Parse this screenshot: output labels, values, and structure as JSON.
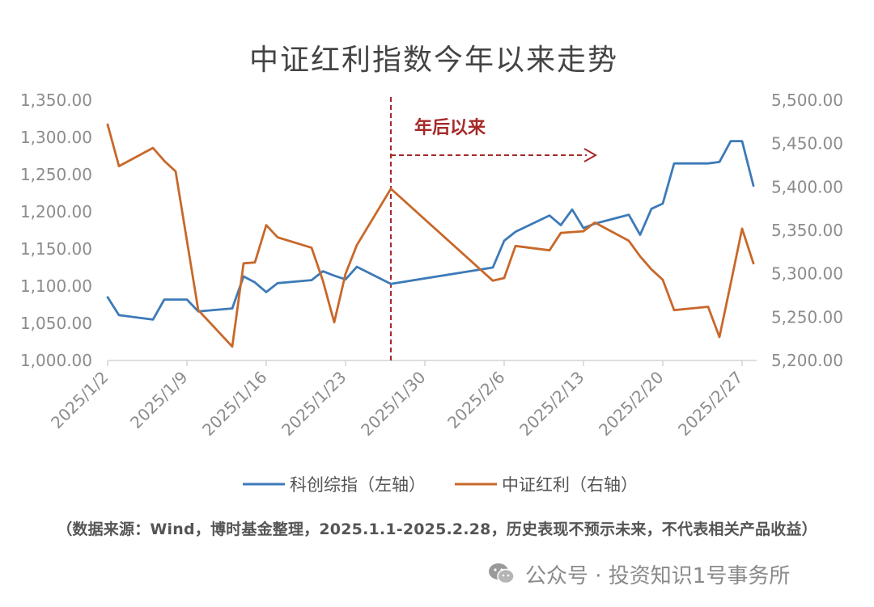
{
  "chart_data": {
    "type": "line",
    "title": "中证红利指数今年以来走势",
    "x_tick_labels": [
      "2025/1/2",
      "2025/1/9",
      "2025/1/16",
      "2025/1/23",
      "2025/1/30",
      "2025/2/6",
      "2025/2/13",
      "2025/2/20",
      "2025/2/27"
    ],
    "left_axis": {
      "ylim": [
        1000,
        1350
      ],
      "ticks": [
        "1,000.00",
        "1,050.00",
        "1,100.00",
        "1,150.00",
        "1,200.00",
        "1,250.00",
        "1,300.00",
        "1,350.00"
      ]
    },
    "right_axis": {
      "ylim": [
        5200,
        5500
      ],
      "ticks": [
        "5,200.00",
        "5,250.00",
        "5,300.00",
        "5,350.00",
        "5,400.00",
        "5,450.00",
        "5,500.00"
      ]
    },
    "grid": false,
    "legend_position": "bottom",
    "annotation": {
      "label": "年后以来",
      "date": "2025-01-27"
    },
    "series": [
      {
        "name": "科创综指（左轴）",
        "axis": "left",
        "color": "#3d7ab8",
        "points": [
          [
            "2025-01-02",
            1085
          ],
          [
            "2025-01-03",
            1061
          ],
          [
            "2025-01-06",
            1055
          ],
          [
            "2025-01-07",
            1082
          ],
          [
            "2025-01-08",
            1082
          ],
          [
            "2025-01-09",
            1082
          ],
          [
            "2025-01-10",
            1066
          ],
          [
            "2025-01-13",
            1070
          ],
          [
            "2025-01-14",
            1113
          ],
          [
            "2025-01-15",
            1105
          ],
          [
            "2025-01-16",
            1092
          ],
          [
            "2025-01-17",
            1104
          ],
          [
            "2025-01-20",
            1108
          ],
          [
            "2025-01-21",
            1120
          ],
          [
            "2025-01-22",
            1114
          ],
          [
            "2025-01-23",
            1109
          ],
          [
            "2025-01-24",
            1126
          ],
          [
            "2025-01-27",
            1103
          ],
          [
            "2025-02-05",
            1125
          ],
          [
            "2025-02-06",
            1161
          ],
          [
            "2025-02-07",
            1173
          ],
          [
            "2025-02-10",
            1195
          ],
          [
            "2025-02-11",
            1182
          ],
          [
            "2025-02-12",
            1203
          ],
          [
            "2025-02-13",
            1178
          ],
          [
            "2025-02-14",
            1184
          ],
          [
            "2025-02-17",
            1196
          ],
          [
            "2025-02-18",
            1169
          ],
          [
            "2025-02-19",
            1204
          ],
          [
            "2025-02-20",
            1211
          ],
          [
            "2025-02-21",
            1265
          ],
          [
            "2025-02-24",
            1265
          ],
          [
            "2025-02-25",
            1267
          ],
          [
            "2025-02-26",
            1295
          ],
          [
            "2025-02-27",
            1295
          ],
          [
            "2025-02-28",
            1235
          ]
        ]
      },
      {
        "name": "中证红利（右轴）",
        "axis": "right",
        "color": "#c8682a",
        "points": [
          [
            "2025-01-02",
            5472
          ],
          [
            "2025-01-03",
            5424
          ],
          [
            "2025-01-06",
            5445
          ],
          [
            "2025-01-07",
            5430
          ],
          [
            "2025-01-08",
            5418
          ],
          [
            "2025-01-10",
            5258
          ],
          [
            "2025-01-13",
            5216
          ],
          [
            "2025-01-14",
            5312
          ],
          [
            "2025-01-15",
            5313
          ],
          [
            "2025-01-16",
            5356
          ],
          [
            "2025-01-17",
            5342
          ],
          [
            "2025-01-20",
            5330
          ],
          [
            "2025-01-21",
            5292
          ],
          [
            "2025-01-22",
            5244
          ],
          [
            "2025-01-23",
            5300
          ],
          [
            "2025-01-24",
            5333
          ],
          [
            "2025-01-27",
            5398
          ],
          [
            "2025-02-05",
            5292
          ],
          [
            "2025-02-06",
            5295
          ],
          [
            "2025-02-07",
            5332
          ],
          [
            "2025-02-10",
            5327
          ],
          [
            "2025-02-11",
            5347
          ],
          [
            "2025-02-12",
            5348
          ],
          [
            "2025-02-13",
            5349
          ],
          [
            "2025-02-14",
            5359
          ],
          [
            "2025-02-17",
            5338
          ],
          [
            "2025-02-18",
            5320
          ],
          [
            "2025-02-19",
            5305
          ],
          [
            "2025-02-20",
            5293
          ],
          [
            "2025-02-21",
            5258
          ],
          [
            "2025-02-24",
            5262
          ],
          [
            "2025-02-25",
            5227
          ],
          [
            "2025-02-26",
            5289
          ],
          [
            "2025-02-27",
            5352
          ],
          [
            "2025-02-28",
            5312
          ]
        ]
      }
    ]
  },
  "source_note": "（数据来源：Wind，博时基金整理，2025.1.1-2025.2.28，历史表现不预示未来，不代表相关产品收益）",
  "watermark": {
    "text": "公众号 · 投资知识1号事务所",
    "icon": "wechat-icon"
  }
}
